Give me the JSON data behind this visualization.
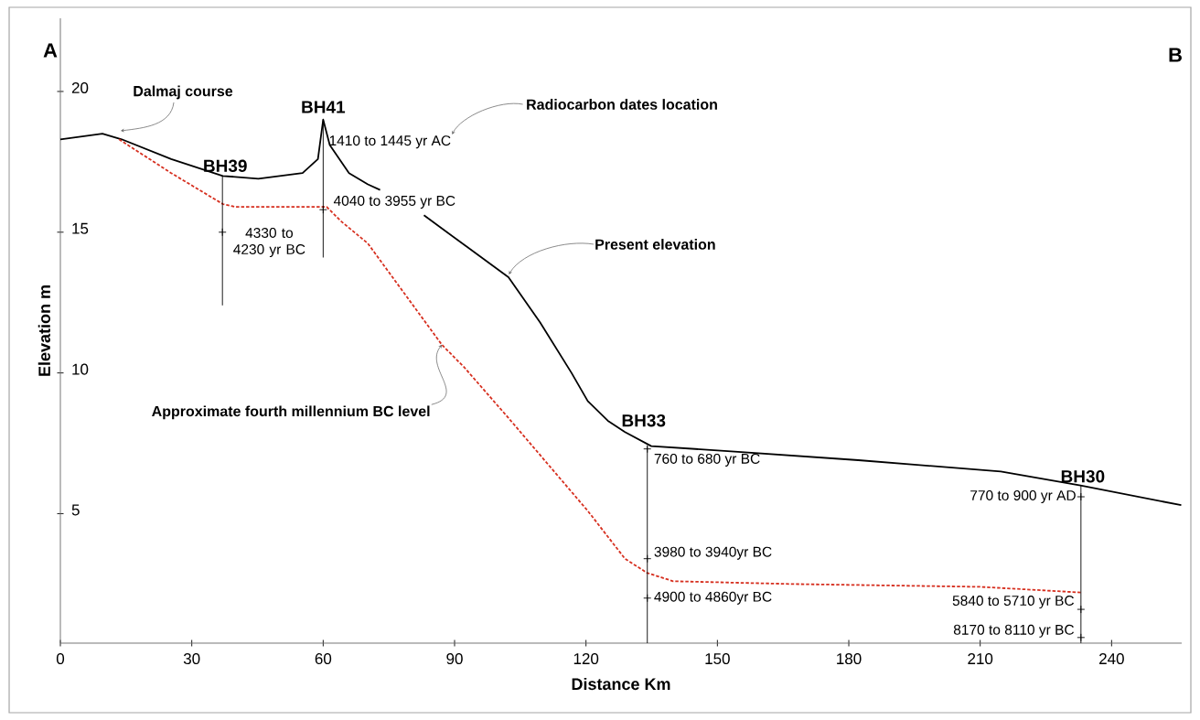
{
  "chart_data": {
    "type": "line",
    "xlabel": "Distance Km",
    "ylabel": "Elevation  m",
    "xlim": [
      0,
      256
    ],
    "ylim": [
      0.4,
      22.6
    ],
    "xticks": [
      0,
      30,
      60,
      90,
      120,
      150,
      180,
      210,
      240
    ],
    "yticks": [
      5,
      10,
      15,
      20
    ],
    "series": [
      {
        "color": "#000000",
        "x": [
          0,
          9.6,
          14.0,
          25.3,
          37.1,
          45.2,
          55.3,
          58.8,
          60.0,
          61.5,
          65.9,
          70.2,
          73.0,
          78.0,
          83.0,
          102.3,
          109.5,
          116.7,
          120.4,
          125.0,
          128.9,
          134.9,
          154.7,
          182.2,
          214.7,
          232.9,
          255.9
        ],
        "values": [
          18.3,
          18.5,
          18.3,
          17.6,
          17.0,
          16.9,
          17.1,
          17.6,
          19.0,
          18.1,
          17.1,
          16.7,
          16.5,
          null,
          15.6,
          13.4,
          11.8,
          10.0,
          9.0,
          8.3,
          7.9,
          7.4,
          7.2,
          6.9,
          6.5,
          6.0,
          5.3
        ]
      },
      {
        "color": "#d62f1f",
        "line_style": "dashed",
        "x": [
          13.4,
          25.3,
          37.1,
          40.0,
          60.8,
          64.0,
          70.2,
          87.1,
          92.2,
          102.3,
          120.4,
          128.9,
          133.9,
          139.9,
          167.3,
          210.0,
          233.0
        ],
        "values": [
          18.3,
          17.1,
          16.0,
          15.9,
          15.9,
          15.4,
          14.6,
          11.0,
          10.2,
          8.4,
          5.1,
          3.4,
          2.9,
          2.6,
          2.5,
          2.4,
          2.2
        ]
      },
      {
        "color": "#000000",
        "x": [
          37,
          37
        ],
        "values": [
          17.0,
          12.4
        ]
      },
      {
        "color": "#000000",
        "x": [
          60,
          60
        ],
        "values": [
          19.0,
          14.1
        ]
      },
      {
        "color": "#000000",
        "x": [
          134,
          134
        ],
        "values": [
          7.4,
          0.4
        ]
      },
      {
        "color": "#000000",
        "x": [
          233,
          233
        ],
        "values": [
          6.0,
          0.4
        ]
      },
      {
        "type": "scatter",
        "color": "#000000",
        "marker": "cross",
        "x": [
          37,
          60,
          134,
          134,
          134,
          233,
          233,
          233
        ],
        "values": [
          15.0,
          15.8,
          7.3,
          3.4,
          2.0,
          5.6,
          1.6,
          0.6
        ]
      }
    ],
    "annotations": [
      "Dalmaj course",
      "Radiocarbon dates location",
      {
        "text": "Present elevation",
        "x": 102.4,
        "y": 13.5
      },
      {
        "text": "Approximate fourth millennium BC level",
        "x": 87.1,
        "y": 11.0
      },
      {
        "text": "BH39",
        "x": 37,
        "y": 17.0
      },
      {
        "text": "BH41",
        "x": 60,
        "y": 19.0
      },
      {
        "text": "BH33",
        "x": 134,
        "y": 7.4
      },
      {
        "text": "BH30",
        "x": 233,
        "y": 6.0
      },
      {
        "text": "1410 to 1445 yr AC",
        "x": 60,
        "y": 18.4
      },
      {
        "text": "4040 to 3955 yr BC",
        "x": 60,
        "y": 15.8
      },
      {
        "text": "4330 to 4230 yr BC",
        "x": 37,
        "y": 15.0
      },
      {
        "text": "760 to 680 yr BC",
        "x": 134,
        "y": 7.3
      },
      {
        "text": "3980 to 3940yr BC",
        "x": 134,
        "y": 3.4
      },
      {
        "text": "4900 to 4860yr BC",
        "x": 134,
        "y": 2.0
      },
      {
        "text": "770 to 900 yr AD",
        "x": 233,
        "y": 5.6
      },
      {
        "text": "5840 to 5710 yr BC",
        "x": 233,
        "y": 1.6
      },
      {
        "text": "8170 to 8110 yr BC",
        "x": 233,
        "y": 0.6
      },
      "A",
      "B"
    ]
  }
}
